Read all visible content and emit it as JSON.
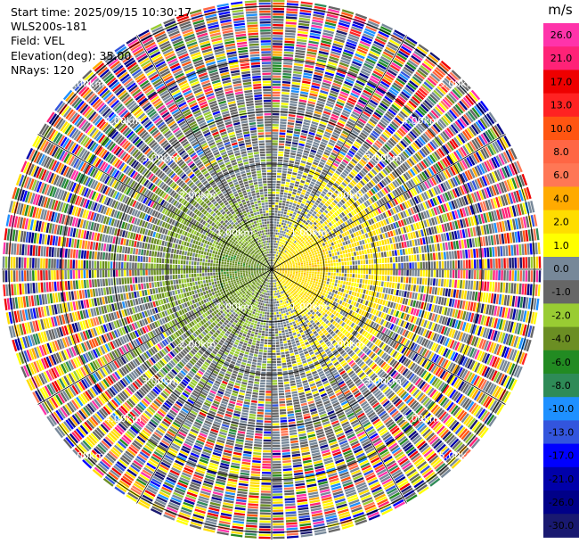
{
  "header": {
    "start_time": "Start time: 2025/09/15 10:30:17",
    "instrument": "WLS200s-181",
    "field": "Field: VEL",
    "elevation": "Elevation(deg): 35.00",
    "nrays": "NRays: 120"
  },
  "colorbar": {
    "unit": "m/s",
    "ticks": [
      "26.0",
      "21.0",
      "17.0",
      "13.0",
      "10.0",
      "8.0",
      "6.0",
      "4.0",
      "2.0",
      "1.0",
      "0.0",
      "-1.0",
      "-2.0",
      "-4.0",
      "-6.0",
      "-8.0",
      "-10.0",
      "-13.0",
      "-17.0",
      "-21.0",
      "-26.0",
      "-30.0"
    ],
    "colors": [
      "#ff33aa",
      "#ff2277",
      "#ee0000",
      "#ff2222",
      "#ff5511",
      "#ff6644",
      "#ff7755",
      "#ffaa00",
      "#ffdd00",
      "#ffff00",
      "#778899",
      "#666666",
      "#99cc33",
      "#6b8e23",
      "#228b22",
      "#2e8b57",
      "#1e90ff",
      "#3355dd",
      "#0000ff",
      "#0000aa",
      "#000088",
      "#191970"
    ]
  },
  "chart_data": {
    "type": "heatmap",
    "projection": "polar PPI",
    "field": "VEL",
    "units": "m/s",
    "nrays": 120,
    "elevation_deg": 35.0,
    "range_rings_km": [
      1.0,
      2.0,
      3.0,
      4.0,
      5.0
    ],
    "range_labels": [
      "1.00km",
      "2.00km",
      "3.00km",
      "4.00km",
      "5.00km"
    ],
    "spoke_angle_step_deg": 30,
    "color_range": [
      -30.0,
      26.0
    ],
    "pattern": {
      "near_range_east": "positive (yellow/orange, 1–4 m/s)",
      "near_range_west": "negative (green, -1 to -6 m/s)",
      "far_range": "noisy, all colors"
    }
  }
}
